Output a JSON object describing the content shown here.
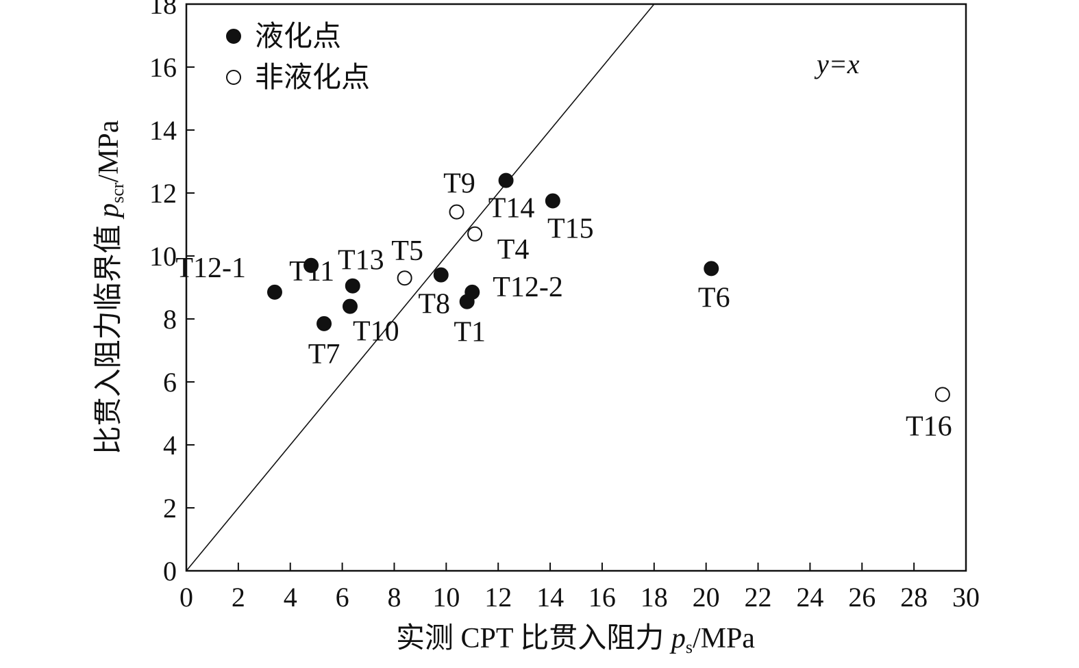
{
  "chart_data": {
    "type": "scatter",
    "xlabel": {
      "text": "实测 CPT 比贯入阻力 ",
      "var": "p",
      "sub": "s",
      "unit": "/MPa"
    },
    "ylabel": {
      "text": "比贯入阻力临界值 ",
      "var": "p",
      "sub": "scr",
      "unit": "/MPa"
    },
    "xlim": [
      0,
      30
    ],
    "ylim": [
      0,
      18
    ],
    "xticks": [
      0,
      2,
      4,
      6,
      8,
      10,
      12,
      14,
      16,
      18,
      20,
      22,
      24,
      26,
      28,
      30
    ],
    "yticks": [
      0,
      2,
      4,
      6,
      8,
      10,
      12,
      14,
      16,
      18
    ],
    "grid": false,
    "legend_position": "top-left",
    "reference_line": {
      "label": "y=x",
      "x": [
        0,
        18
      ],
      "y": [
        0,
        18
      ]
    },
    "series": [
      {
        "name": "液化点",
        "marker": "filled-circle",
        "points": [
          {
            "label": "T12-1",
            "x": 3.4,
            "y": 8.85
          },
          {
            "label": "T11",
            "x": 4.8,
            "y": 9.7
          },
          {
            "label": "T7",
            "x": 5.3,
            "y": 7.85
          },
          {
            "label": "T10",
            "x": 6.3,
            "y": 8.4
          },
          {
            "label": "T13",
            "x": 6.4,
            "y": 9.05
          },
          {
            "label": "T8",
            "x": 9.8,
            "y": 9.4
          },
          {
            "label": "T1",
            "x": 10.8,
            "y": 8.55
          },
          {
            "label": "T12-2",
            "x": 11.0,
            "y": 8.85
          },
          {
            "label": "T14",
            "x": 12.3,
            "y": 12.4
          },
          {
            "label": "T15",
            "x": 14.1,
            "y": 11.75
          },
          {
            "label": "T6",
            "x": 20.2,
            "y": 9.6
          }
        ]
      },
      {
        "name": "非液化点",
        "marker": "open-circle",
        "points": [
          {
            "label": "T5",
            "x": 8.4,
            "y": 9.3
          },
          {
            "label": "T9",
            "x": 10.4,
            "y": 11.4
          },
          {
            "label": "T4",
            "x": 11.1,
            "y": 10.7
          },
          {
            "label": "T16",
            "x": 29.1,
            "y": 5.6
          }
        ]
      }
    ]
  }
}
